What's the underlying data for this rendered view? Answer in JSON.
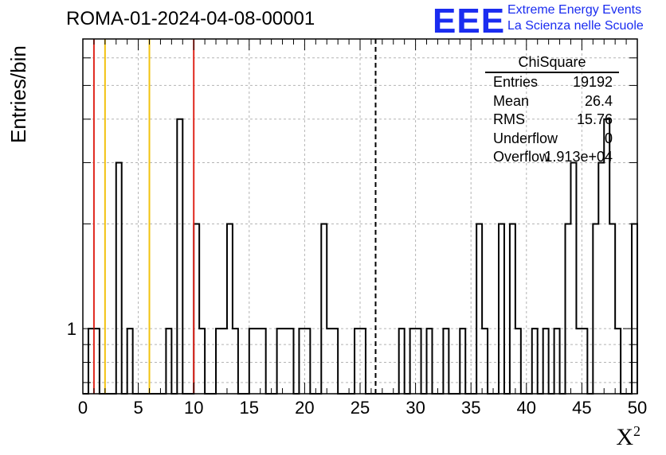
{
  "title": "ROMA-01-2024-04-08-00001",
  "ylabel": "Entries/bin",
  "xlabel": "X",
  "xlabel_sup": "2",
  "logo": {
    "mark": "EEE",
    "line1": "Extreme Energy Events",
    "line2": "La Scienza nelle Scuole"
  },
  "stats": {
    "title": "ChiSquare",
    "rows": [
      {
        "k": "Entries",
        "v": "19192"
      },
      {
        "k": "Mean",
        "v": "26.4"
      },
      {
        "k": "RMS",
        "v": "15.76"
      },
      {
        "k": "Underflow",
        "v": "0"
      },
      {
        "k": "Overflow",
        "v": "1.913e+04"
      }
    ]
  },
  "chart_data": {
    "type": "histogram",
    "y_scale": "log",
    "xlim": [
      0,
      50
    ],
    "ylim": [
      0.65,
      6.8
    ],
    "bin_width": 0.5,
    "x_ticks": [
      0,
      5,
      10,
      15,
      20,
      25,
      30,
      35,
      40,
      45,
      50
    ],
    "y_tick_labels": [
      {
        "value": 1,
        "label": "1"
      }
    ],
    "grid": true,
    "bins": [
      {
        "x": 0.5,
        "y": 1
      },
      {
        "x": 1.0,
        "y": 1
      },
      {
        "x": 3.0,
        "y": 3
      },
      {
        "x": 4.0,
        "y": 1
      },
      {
        "x": 5.5,
        "y": 0
      },
      {
        "x": 7.5,
        "y": 1
      },
      {
        "x": 8.5,
        "y": 4
      },
      {
        "x": 10.0,
        "y": 2
      },
      {
        "x": 10.5,
        "y": 1
      },
      {
        "x": 12.0,
        "y": 1
      },
      {
        "x": 12.5,
        "y": 1
      },
      {
        "x": 13.0,
        "y": 2
      },
      {
        "x": 13.5,
        "y": 1
      },
      {
        "x": 15.0,
        "y": 1
      },
      {
        "x": 15.5,
        "y": 1
      },
      {
        "x": 16.0,
        "y": 1
      },
      {
        "x": 17.5,
        "y": 1
      },
      {
        "x": 18.0,
        "y": 1
      },
      {
        "x": 18.5,
        "y": 1
      },
      {
        "x": 19.0,
        "y": 0
      },
      {
        "x": 19.5,
        "y": 1
      },
      {
        "x": 20.0,
        "y": 1
      },
      {
        "x": 21.5,
        "y": 2
      },
      {
        "x": 22.0,
        "y": 1
      },
      {
        "x": 22.5,
        "y": 1
      },
      {
        "x": 24.5,
        "y": 1
      },
      {
        "x": 25.0,
        "y": 1
      },
      {
        "x": 28.5,
        "y": 1
      },
      {
        "x": 29.5,
        "y": 1
      },
      {
        "x": 30.0,
        "y": 1
      },
      {
        "x": 31.0,
        "y": 1
      },
      {
        "x": 32.5,
        "y": 1
      },
      {
        "x": 34.0,
        "y": 1
      },
      {
        "x": 35.5,
        "y": 2
      },
      {
        "x": 36.0,
        "y": 1
      },
      {
        "x": 37.5,
        "y": 2
      },
      {
        "x": 38.5,
        "y": 2
      },
      {
        "x": 39.0,
        "y": 1
      },
      {
        "x": 40.5,
        "y": 1
      },
      {
        "x": 41.5,
        "y": 1
      },
      {
        "x": 42.5,
        "y": 1
      },
      {
        "x": 43.5,
        "y": 2
      },
      {
        "x": 44.0,
        "y": 3
      },
      {
        "x": 44.5,
        "y": 1
      },
      {
        "x": 45.0,
        "y": 1
      },
      {
        "x": 46.0,
        "y": 2
      },
      {
        "x": 46.5,
        "y": 3
      },
      {
        "x": 47.0,
        "y": 4
      },
      {
        "x": 47.5,
        "y": 2
      },
      {
        "x": 48.0,
        "y": 1
      },
      {
        "x": 49.5,
        "y": 2
      }
    ],
    "vertical_lines": [
      {
        "x": 1.0,
        "color": "#e0281e",
        "style": "solid"
      },
      {
        "x": 2.0,
        "color": "#f2c20f",
        "style": "solid"
      },
      {
        "x": 6.0,
        "color": "#f2c20f",
        "style": "solid"
      },
      {
        "x": 10.0,
        "color": "#e0281e",
        "style": "solid"
      },
      {
        "x": 26.4,
        "color": "#000000",
        "style": "dashed"
      }
    ]
  }
}
